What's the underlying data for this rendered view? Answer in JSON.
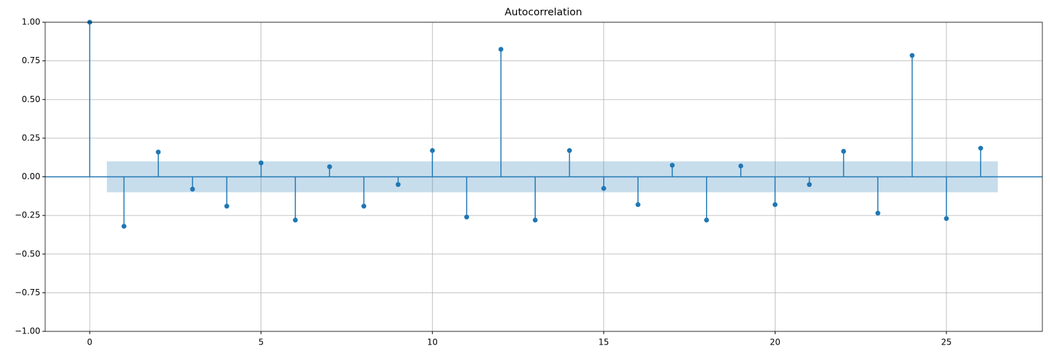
{
  "chart_data": {
    "type": "stem",
    "title": "Autocorrelation",
    "x": [
      0,
      1,
      2,
      3,
      4,
      5,
      6,
      7,
      8,
      9,
      10,
      11,
      12,
      13,
      14,
      15,
      16,
      17,
      18,
      19,
      20,
      21,
      22,
      23,
      24,
      25,
      26
    ],
    "values": [
      1.0,
      -0.32,
      0.16,
      -0.08,
      -0.19,
      0.09,
      -0.28,
      0.065,
      -0.19,
      -0.05,
      0.17,
      -0.26,
      0.825,
      -0.28,
      0.17,
      -0.075,
      -0.18,
      0.075,
      -0.28,
      0.07,
      -0.18,
      -0.05,
      0.165,
      -0.235,
      0.785,
      -0.27,
      0.185
    ],
    "color": "#1f77b4",
    "band_x": [
      0.5,
      26.5
    ],
    "band_upper": [
      0.1,
      0.1
    ],
    "band_lower": [
      -0.1,
      -0.1
    ],
    "xlim": [
      -1.3,
      27.8
    ],
    "ylim": [
      -1.0,
      1.0
    ],
    "xticks": [
      0,
      5,
      10,
      15,
      20,
      25
    ],
    "yticks": [
      {
        "value": -1.0,
        "label": "−1.00"
      },
      {
        "value": -0.75,
        "label": "−0.75"
      },
      {
        "value": -0.5,
        "label": "−0.50"
      },
      {
        "value": -0.25,
        "label": "−0.25"
      },
      {
        "value": 0,
        "label": "0.00"
      },
      {
        "value": 0.25,
        "label": "0.25"
      },
      {
        "value": 0.5,
        "label": "0.50"
      },
      {
        "value": 0.75,
        "label": "0.75"
      },
      {
        "value": 1.0,
        "label": "1.00"
      }
    ],
    "grid": true
  }
}
